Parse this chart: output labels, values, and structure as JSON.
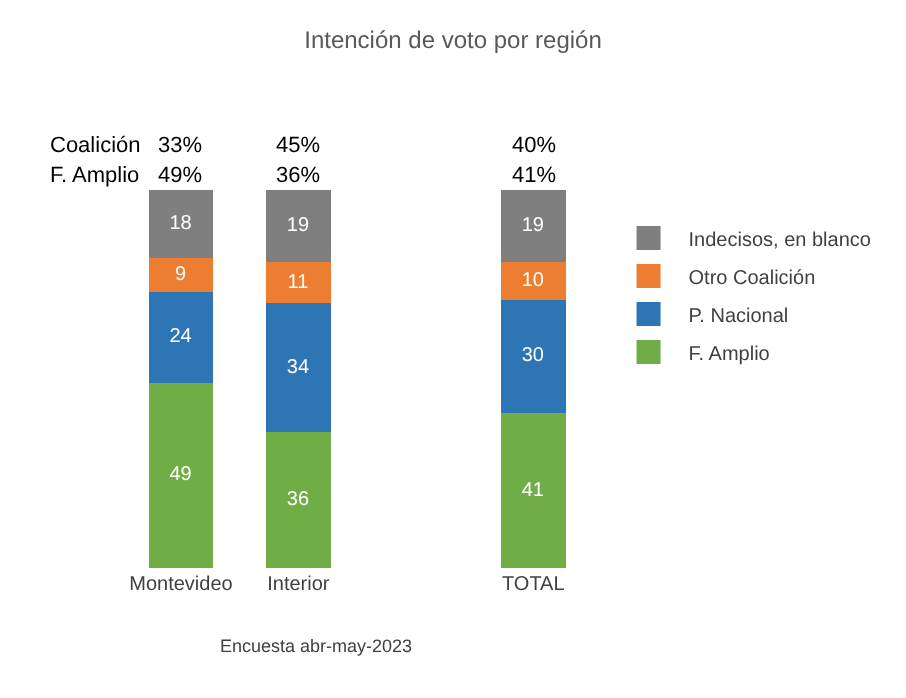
{
  "chart_data": {
    "type": "bar",
    "title": "Intención de voto por región",
    "stacked": true,
    "data_labels": true,
    "legend": "right",
    "categories": [
      "Montevideo",
      "Interior",
      null,
      "TOTAL"
    ],
    "series": [
      {
        "name": "F. Amplio",
        "color": "#70ad47",
        "values": [
          49,
          36,
          null,
          41
        ]
      },
      {
        "name": "P. Nacional",
        "color": "#2e75b6",
        "values": [
          24,
          34,
          null,
          30
        ]
      },
      {
        "name": "Otro Coalición",
        "color": "#ed7d31",
        "values": [
          9,
          11,
          null,
          10
        ]
      },
      {
        "name": "Indecisos, en blanco",
        "color": "#7f7f7f",
        "values": [
          18,
          19,
          null,
          19
        ]
      }
    ],
    "annotations": [
      "Coalición",
      "33%",
      "45%",
      "40%",
      "F. Amplio",
      "49%",
      "36%",
      "41%",
      "Encuesta abr-may-2023"
    ]
  }
}
